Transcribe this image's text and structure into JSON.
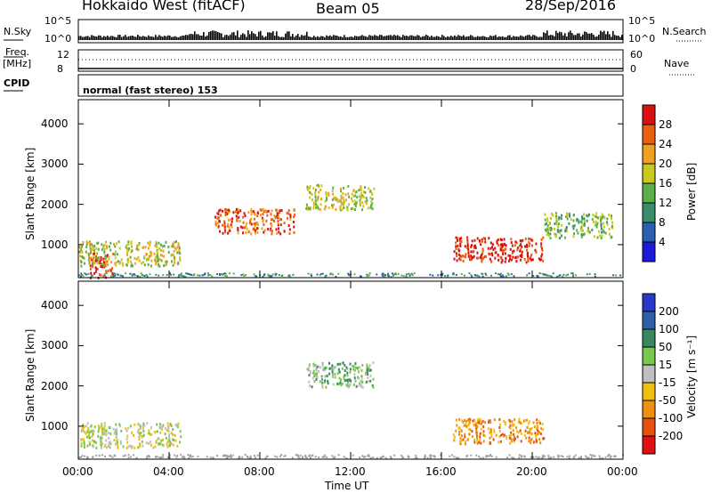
{
  "header": {
    "site": "Hokkaido West (fitACF)",
    "beam": "Beam 05",
    "date": "28/Sep/2016"
  },
  "noise_panel": {
    "left_label": "N.Sky",
    "right_label": "N.Search",
    "left_ticks": [
      "10^5",
      "10^0"
    ],
    "right_ticks": [
      "10^5",
      "10^0"
    ]
  },
  "freq_panel": {
    "left_label_1": "Freq.",
    "left_label_2": "[MHz]",
    "left_ticks": [
      "12",
      "8"
    ],
    "right_ticks": [
      "60",
      "0"
    ],
    "right_label": "Nave"
  },
  "cpid": {
    "label": "CPID",
    "value": "normal (fast stereo) 153"
  },
  "chart_data": [
    {
      "type": "heatmap",
      "parameter": "Power",
      "ylabel": "Slant Range [km]",
      "xlabel": "Time UT",
      "ylim": [
        180,
        4600
      ],
      "yticks": [
        "1000",
        "2000",
        "3000",
        "4000"
      ],
      "xticks": [
        "00:00",
        "04:00",
        "08:00",
        "12:00",
        "16:00",
        "20:00",
        "00:00"
      ],
      "colorbar": {
        "label": "Power [dB]",
        "ticks": [
          "4",
          "8",
          "12",
          "16",
          "20",
          "24",
          "28"
        ],
        "colors": [
          "#1a1ad8",
          "#2a5fb0",
          "#3a8d6a",
          "#5cb04a",
          "#c8c81e",
          "#f0a020",
          "#e86010",
          "#d81010"
        ]
      },
      "features": [
        {
          "start": "00:30",
          "end": "01:30",
          "range_km": 500,
          "power_db": 28
        },
        {
          "start": "00:00",
          "end": "04:30",
          "range_km": 800,
          "power_db": 14
        },
        {
          "start": "06:00",
          "end": "09:30",
          "range_km": 1600,
          "power_db": 22
        },
        {
          "start": "10:00",
          "end": "13:00",
          "range_km": 2200,
          "power_db": 16
        },
        {
          "start": "16:30",
          "end": "20:30",
          "range_km": 900,
          "power_db": 28
        },
        {
          "start": "20:30",
          "end": "23:30",
          "range_km": 1500,
          "power_db": 10
        }
      ]
    },
    {
      "type": "heatmap",
      "parameter": "Velocity",
      "ylabel": "Slant Range [km]",
      "xlabel": "Time UT",
      "ylim": [
        180,
        4600
      ],
      "yticks": [
        "1000",
        "2000",
        "3000",
        "4000"
      ],
      "xticks": [
        "00:00",
        "04:00",
        "08:00",
        "12:00",
        "16:00",
        "20:00",
        "00:00"
      ],
      "colorbar": {
        "label": "Velocity [m s⁻¹]",
        "ticks": [
          "200",
          "100",
          "50",
          "15",
          "-15",
          "-50",
          "-100",
          "-200"
        ],
        "colors": [
          "#2838c8",
          "#3060a8",
          "#3a8860",
          "#78c850",
          "#c0c0c0",
          "#f0c010",
          "#f09010",
          "#e85010",
          "#e01010"
        ]
      },
      "features": [
        {
          "start": "00:00",
          "end": "04:30",
          "range_km": 800,
          "velocity_ms": 0
        },
        {
          "start": "10:00",
          "end": "13:00",
          "range_km": 2300,
          "velocity_ms": 30
        },
        {
          "start": "16:30",
          "end": "20:30",
          "range_km": 900,
          "velocity_ms": -60
        }
      ]
    }
  ]
}
